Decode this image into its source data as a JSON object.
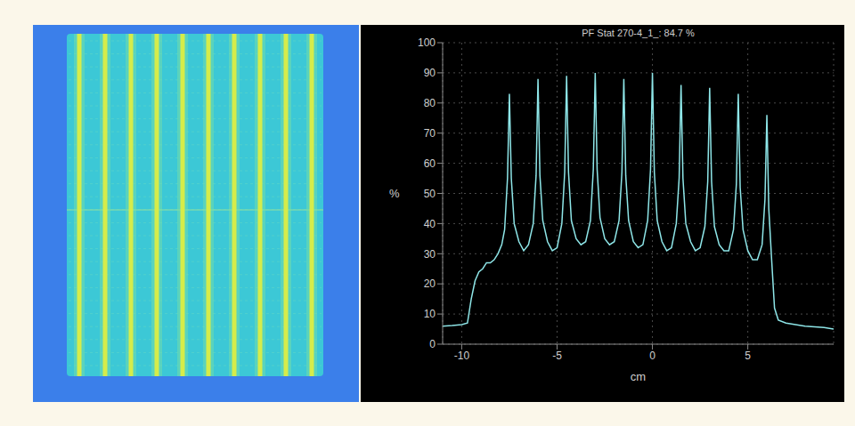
{
  "chart_data": {
    "type": "line",
    "title": "PF Stat 270-4_1_: 84.7 %",
    "x_label": "cm",
    "y_label": "%",
    "x": [
      -11,
      -10.5,
      -10,
      -9.7,
      -9.5,
      -9.3,
      -9.1,
      -8.9,
      -8.7,
      -8.5,
      -8.3,
      -8.1,
      -7.9,
      -7.75,
      -7.6,
      -7.5,
      -7.4,
      -7.25,
      -7,
      -6.75,
      -6.5,
      -6.25,
      -6.1,
      -6,
      -5.9,
      -5.75,
      -5.5,
      -5.25,
      -5,
      -4.75,
      -4.6,
      -4.5,
      -4.4,
      -4.25,
      -4,
      -3.75,
      -3.5,
      -3.25,
      -3.1,
      -3,
      -2.9,
      -2.75,
      -2.5,
      -2.25,
      -2,
      -1.75,
      -1.6,
      -1.5,
      -1.4,
      -1.25,
      -1,
      -0.75,
      -0.5,
      -0.25,
      -0.1,
      0,
      0.1,
      0.25,
      0.5,
      0.75,
      1,
      1.25,
      1.4,
      1.5,
      1.6,
      1.75,
      2,
      2.25,
      2.5,
      2.75,
      2.9,
      3,
      3.1,
      3.25,
      3.5,
      3.75,
      4,
      4.25,
      4.4,
      4.5,
      4.6,
      4.75,
      5,
      5.25,
      5.5,
      5.75,
      5.9,
      6,
      6.1,
      6.25,
      6.4,
      6.6,
      7,
      8,
      9,
      9.5
    ],
    "values": [
      6,
      6.2,
      6.5,
      7,
      15,
      21,
      24,
      25,
      27,
      27,
      28,
      30,
      33,
      38,
      55,
      83,
      55,
      40,
      34,
      31,
      33,
      40,
      56,
      88,
      56,
      41,
      34,
      31,
      32,
      40,
      57,
      89,
      57,
      41,
      35,
      33,
      34,
      41,
      58,
      90,
      58,
      42,
      35,
      33,
      34,
      41,
      57,
      88,
      56,
      41,
      34,
      32,
      33,
      41,
      58,
      90,
      57,
      41,
      34,
      31,
      32,
      40,
      55,
      86,
      55,
      40,
      34,
      31,
      32,
      39,
      54,
      85,
      54,
      39,
      33,
      31,
      31,
      38,
      53,
      83,
      52,
      38,
      31,
      28,
      28,
      33,
      48,
      76,
      45,
      28,
      12,
      8,
      7,
      6,
      5.5,
      5
    ],
    "color": "#8ee6e8",
    "xlim": [
      -11,
      9.5
    ],
    "ylim": [
      0,
      100
    ],
    "xticks": [
      -10,
      -5,
      0,
      5
    ],
    "yticks": [
      0,
      10,
      20,
      30,
      40,
      50,
      60,
      70,
      80,
      90,
      100
    ],
    "grid": true
  }
}
